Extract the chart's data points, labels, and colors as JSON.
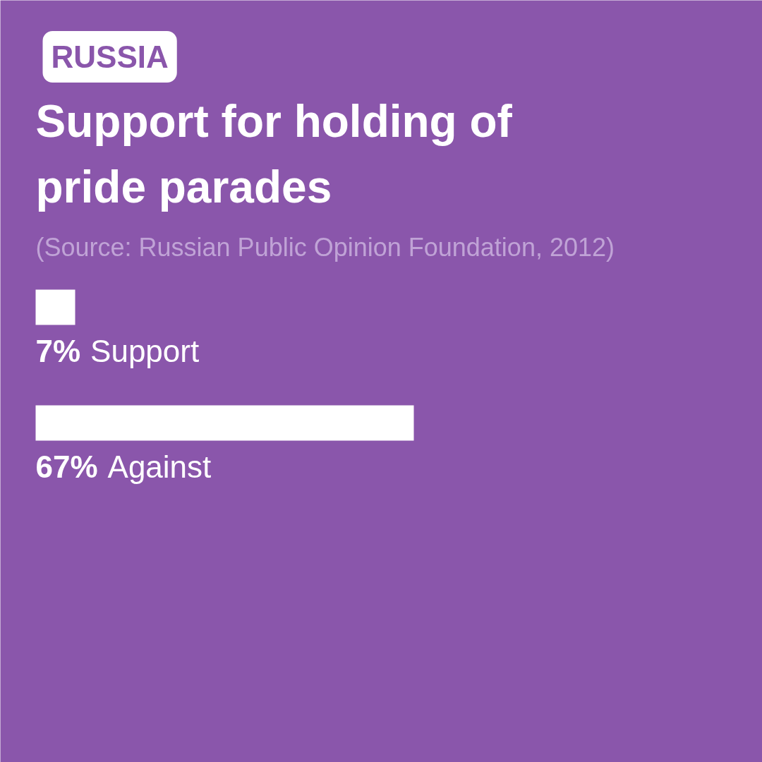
{
  "chart_data": {
    "type": "bar",
    "orientation": "horizontal",
    "title": "Support for holding of pride parades",
    "subtitle": "(Source: Russian Public Opinion Foundation, 2012)",
    "annotations": [
      "RUSSIA"
    ],
    "categories": [
      "Support",
      "Against"
    ],
    "values": [
      7,
      67
    ],
    "value_labels": [
      "7%",
      "67%"
    ],
    "color": "#ffffff"
  }
}
